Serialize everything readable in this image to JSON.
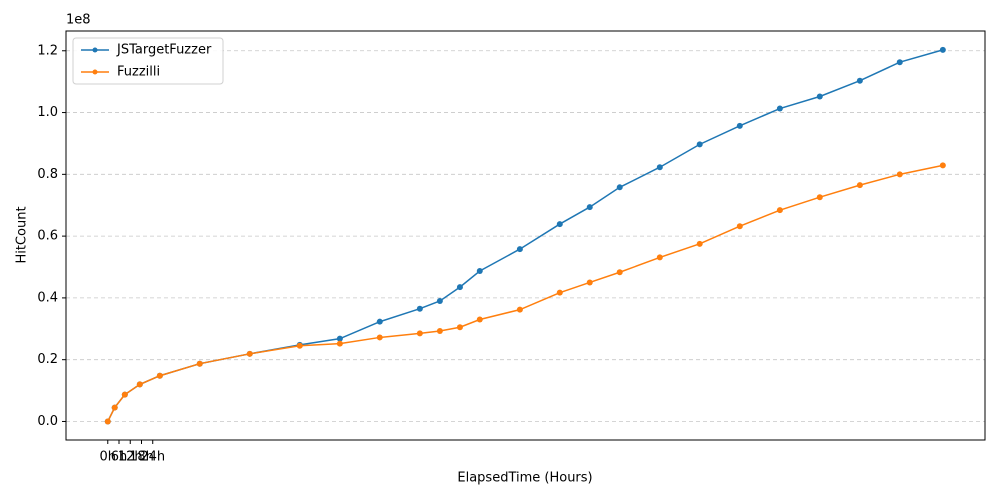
{
  "chart_data": {
    "type": "line",
    "xlabel": "ElapsedTime (Hours)",
    "ylabel": "HitCount",
    "offset_text": "1e8",
    "x": [
      0,
      3.7,
      9.1,
      17.1,
      27.8,
      49.1,
      75.8,
      102.5,
      123.9,
      145.2,
      166.6,
      177.3,
      188,
      198.6,
      220,
      241.3,
      257.3,
      273.3,
      294.7,
      316,
      337.4,
      358.8,
      380.1,
      401.5,
      422.8,
      445.8
    ],
    "series": [
      {
        "name": "JSTargetFuzzer",
        "color": "#1f77b4",
        "values": [
          0,
          0.045,
          0.087,
          0.12,
          0.148,
          0.187,
          0.219,
          0.248,
          0.268,
          0.323,
          0.365,
          0.39,
          0.435,
          0.487,
          0.558,
          0.639,
          0.694,
          0.758,
          0.823,
          0.897,
          0.957,
          1.013,
          1.052,
          1.103,
          1.163,
          1.203
        ]
      },
      {
        "name": "Fuzzilli",
        "color": "#ff7f0e",
        "values": [
          0,
          0.045,
          0.087,
          0.12,
          0.148,
          0.187,
          0.219,
          0.245,
          0.252,
          0.272,
          0.285,
          0.293,
          0.305,
          0.33,
          0.362,
          0.417,
          0.45,
          0.483,
          0.531,
          0.575,
          0.632,
          0.684,
          0.726,
          0.765,
          0.8,
          0.829
        ]
      }
    ],
    "xlim": [
      -22.3,
      468.3
    ],
    "xticks": [
      {
        "value": 0,
        "label": "0h"
      },
      {
        "value": 6,
        "label": "6h"
      },
      {
        "value": 12,
        "label": "12h"
      },
      {
        "value": 18,
        "label": "18h"
      },
      {
        "value": 24,
        "label": "24h"
      }
    ],
    "ylim": [
      -0.06,
      1.264
    ],
    "yticks": [
      {
        "value": 0,
        "label": "0.0"
      },
      0.2,
      0.4,
      0.6,
      0.8,
      {
        "value": 1,
        "label": "1.0"
      },
      1.2
    ],
    "grid": "y",
    "legend": "upper left"
  }
}
